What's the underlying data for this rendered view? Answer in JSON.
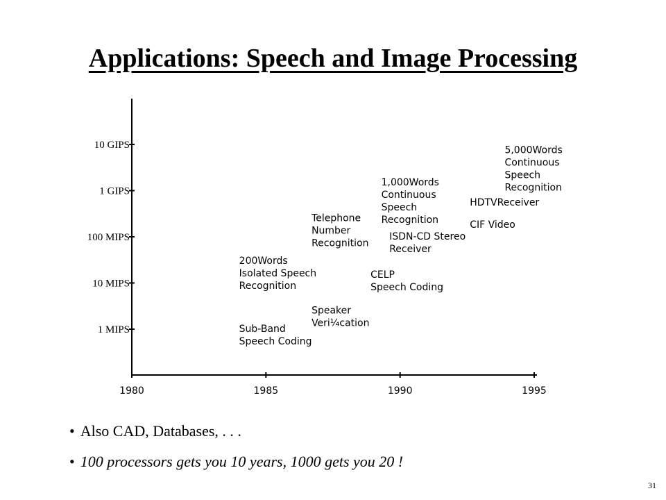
{
  "slide": {
    "title": "Applications: Speech and Image Processing",
    "page_number": "31"
  },
  "bullets": [
    {
      "text": "Also CAD, Databases, . . .",
      "style": "normal"
    },
    {
      "text": "100 processors gets you 10 years, 1000 gets you 20 !",
      "style": "italic"
    }
  ],
  "chart_data": {
    "type": "scatter",
    "title": "",
    "xlabel": "",
    "ylabel": "",
    "y_scale": "log",
    "xlim": [
      1980,
      1995
    ],
    "x_ticks": [
      {
        "value": 1980,
        "label": "1980"
      },
      {
        "value": 1985,
        "label": "1985"
      },
      {
        "value": 1990,
        "label": "1990"
      },
      {
        "value": 1995,
        "label": "1995"
      }
    ],
    "y_ticks": [
      {
        "value": 1,
        "label": "1 MIPS"
      },
      {
        "value": 10,
        "label": "10 MIPS"
      },
      {
        "value": 100,
        "label": "100 MIPS"
      },
      {
        "value": 1000,
        "label": "1 GIPS"
      },
      {
        "value": 10000,
        "label": "10 GIPS"
      }
    ],
    "y_units": "MIPS",
    "grid": false,
    "legend": "none",
    "applications": [
      {
        "lines": [
          "Sub-Band",
          "Speech Coding"
        ],
        "year": 1984.0,
        "mips": 1
      },
      {
        "lines": [
          "200Words",
          "Isolated Speech",
          "Recognition"
        ],
        "year": 1984.0,
        "mips": 30
      },
      {
        "lines": [
          "Speaker",
          "Veri¼cation"
        ],
        "year": 1986.7,
        "mips": 2.5
      },
      {
        "lines": [
          "Telephone",
          "Number",
          "Recognition"
        ],
        "year": 1986.7,
        "mips": 250
      },
      {
        "lines": [
          "CELP",
          "Speech Coding"
        ],
        "year": 1988.9,
        "mips": 15
      },
      {
        "lines": [
          "1,000Words",
          "Continuous",
          "Speech",
          "Recognition"
        ],
        "year": 1989.3,
        "mips": 1500
      },
      {
        "lines": [
          "ISDN-CD Stereo",
          "Receiver"
        ],
        "year": 1989.6,
        "mips": 100
      },
      {
        "lines": [
          "HDTVReceiver"
        ],
        "year": 1992.6,
        "mips": 550
      },
      {
        "lines": [
          "CIF Video"
        ],
        "year": 1992.6,
        "mips": 180
      },
      {
        "lines": [
          "5,000Words",
          "Continuous",
          "Speech",
          "Recognition"
        ],
        "year": 1993.9,
        "mips": 7500
      }
    ]
  }
}
